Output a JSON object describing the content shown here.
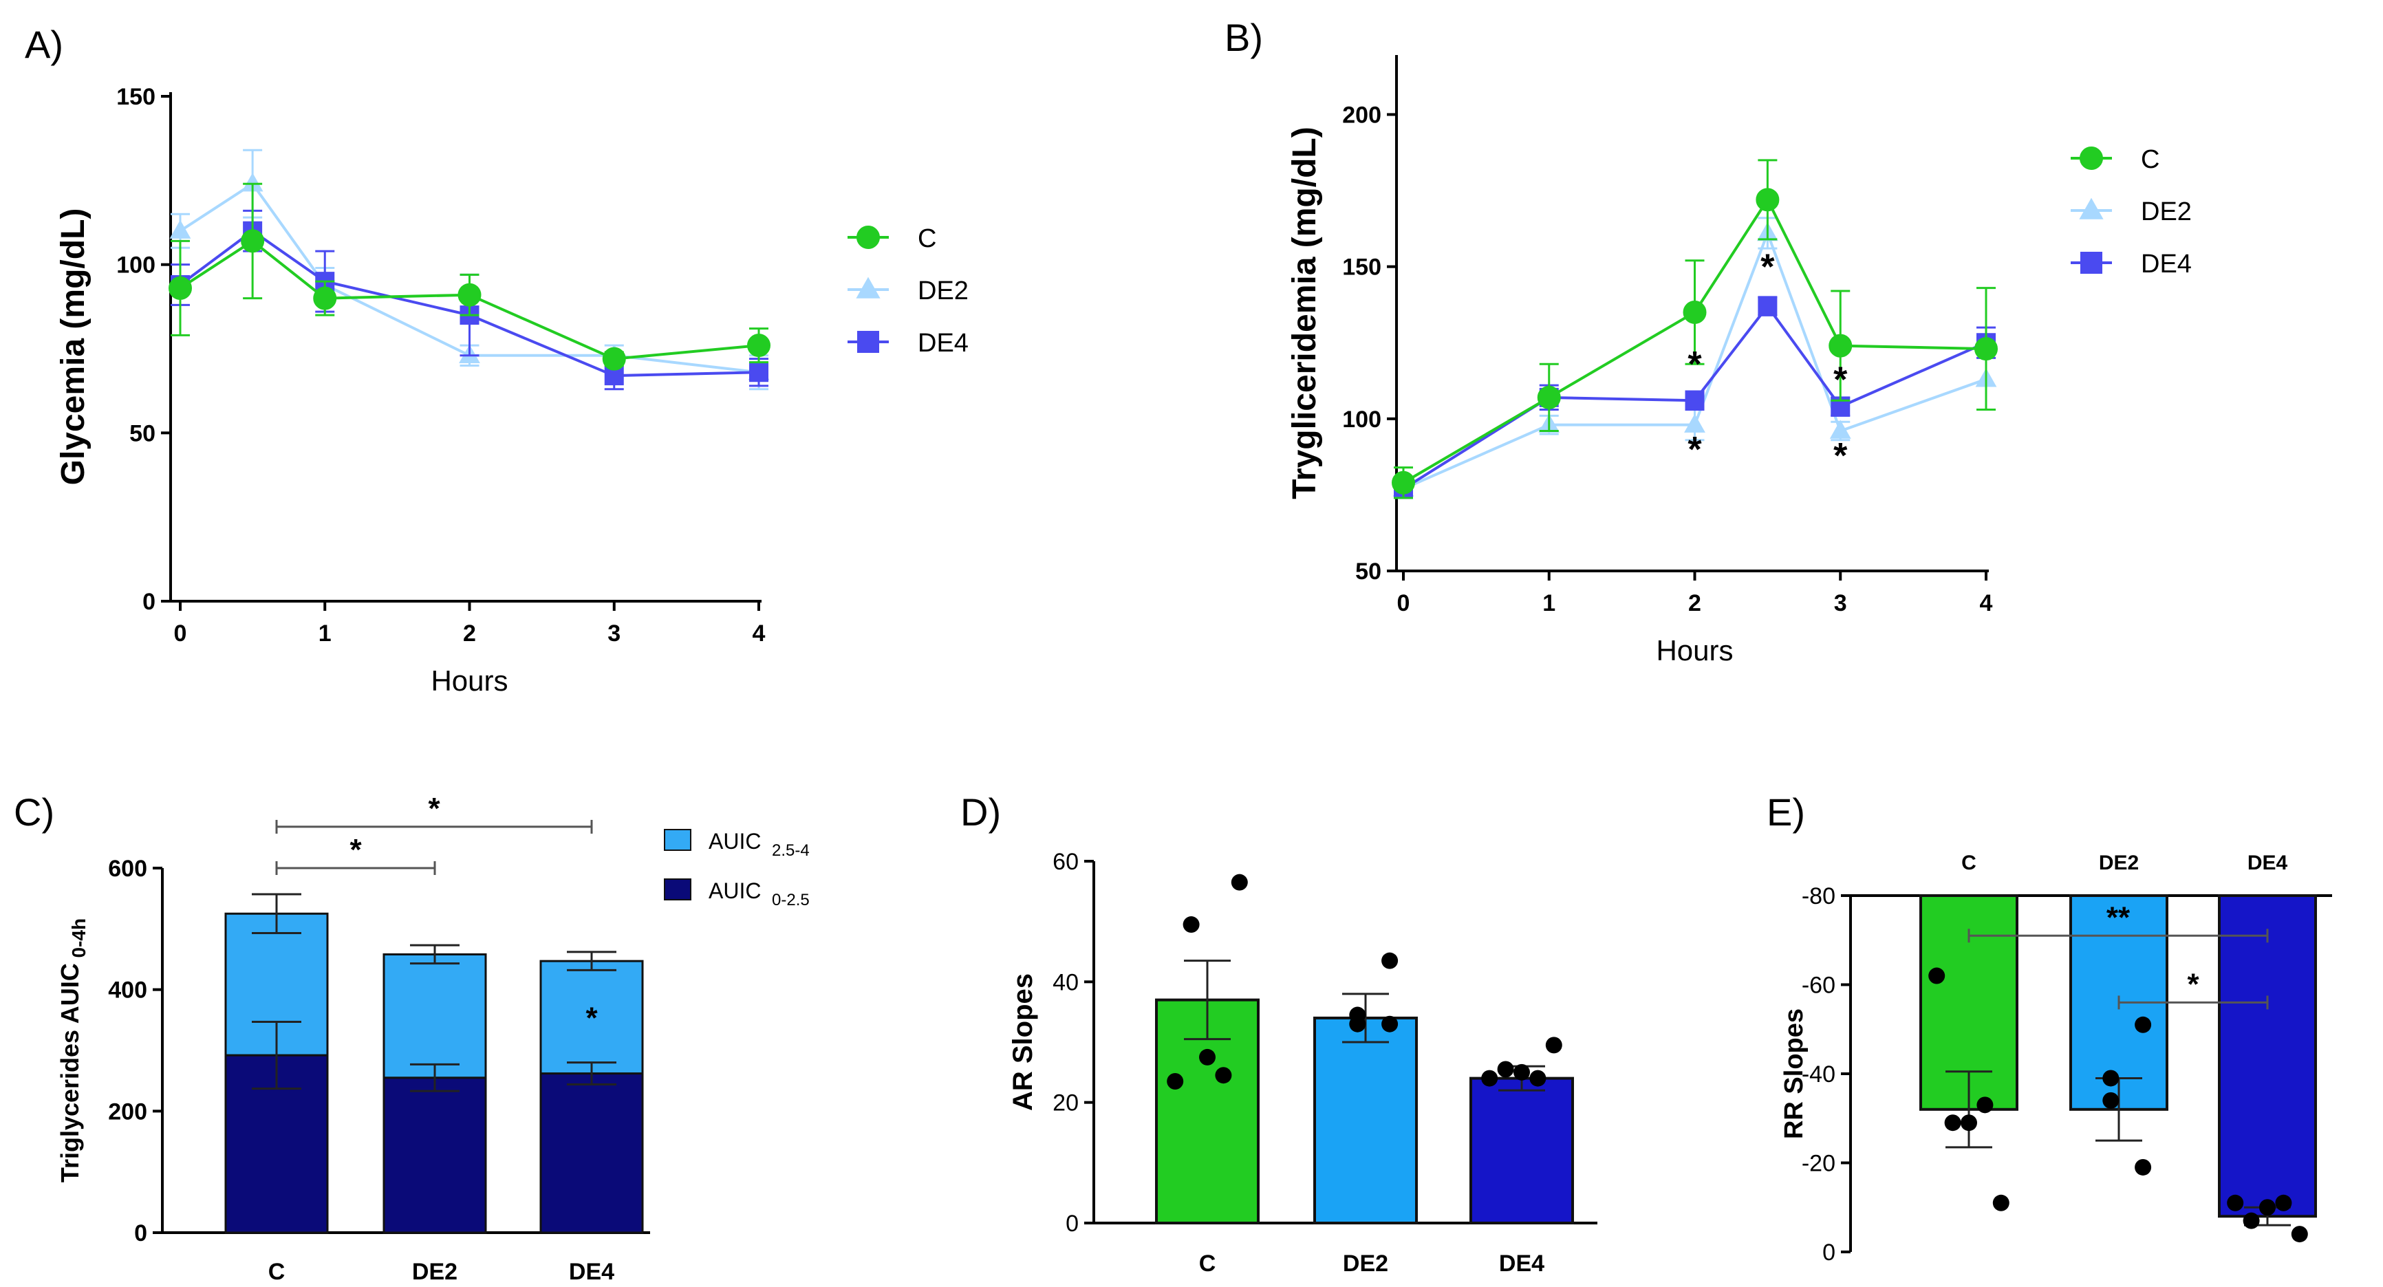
{
  "figure": {
    "colors": {
      "C": "#22cc22",
      "DE2": "#a8d8ff",
      "DE4": "#4a4af0",
      "AUIC_upper": "#33aaf5",
      "AUIC_lower": "#0a0a78",
      "bar_C": "#22cc22",
      "bar_DE2": "#1aa3f5",
      "bar_DE4": "#1515c8"
    }
  },
  "chart_data": [
    {
      "panel": "A)",
      "type": "line",
      "xlabel": "Hours",
      "ylabel": "Glycemia (mg/dL)",
      "xlim": [
        0,
        4
      ],
      "ylim": [
        0,
        150
      ],
      "xticks": [
        "0",
        "1",
        "2",
        "3",
        "4"
      ],
      "yticks": [
        "0",
        "50",
        "100",
        "150"
      ],
      "x": [
        0,
        0.5,
        1,
        2,
        3,
        4
      ],
      "series": [
        {
          "name": "C",
          "marker": "circle",
          "values": [
            93,
            107,
            90,
            91,
            72,
            76
          ],
          "errors": [
            14,
            17,
            5,
            6,
            2,
            5
          ]
        },
        {
          "name": "DE2",
          "marker": "triangle",
          "values": [
            110,
            124,
            94,
            73,
            73,
            68
          ],
          "errors": [
            5,
            10,
            5,
            3,
            3,
            5
          ]
        },
        {
          "name": "DE4",
          "marker": "square",
          "values": [
            94,
            110,
            95,
            85,
            67,
            68
          ],
          "errors": [
            6,
            6,
            9,
            12,
            4,
            4
          ]
        }
      ],
      "legend": [
        "C",
        "DE2",
        "DE4"
      ]
    },
    {
      "panel": "B)",
      "type": "line",
      "xlabel": "Hours",
      "ylabel": "Trygliceridemia (mg/dL)",
      "xlim": [
        0,
        4
      ],
      "ylim": [
        50,
        220
      ],
      "xticks": [
        "0",
        "1",
        "2",
        "3",
        "4"
      ],
      "yticks": [
        "50",
        "100",
        "150",
        "200"
      ],
      "x": [
        0,
        1,
        2,
        2.5,
        3,
        4
      ],
      "series": [
        {
          "name": "C",
          "marker": "circle",
          "values": [
            79,
            107,
            135,
            172,
            124,
            123
          ],
          "errors": [
            5,
            11,
            17,
            13,
            18,
            20
          ]
        },
        {
          "name": "DE2",
          "marker": "triangle",
          "values": [
            77,
            98,
            98,
            161,
            96,
            113
          ],
          "errors": [
            3,
            3,
            5,
            5,
            3,
            10
          ]
        },
        {
          "name": "DE4",
          "marker": "square",
          "values": [
            77,
            107,
            106,
            137,
            104,
            125
          ],
          "errors": [
            3,
            4,
            3,
            3,
            3,
            5
          ]
        }
      ],
      "annotations": [
        {
          "text": "*",
          "x": 2,
          "y": 118
        },
        {
          "text": "*",
          "x": 2,
          "y": 90
        },
        {
          "text": "*",
          "x": 2.5,
          "y": 150
        },
        {
          "text": "*",
          "x": 3,
          "y": 113
        },
        {
          "text": "*",
          "x": 3,
          "y": 88
        }
      ],
      "legend": [
        "C",
        "DE2",
        "DE4"
      ]
    },
    {
      "panel": "C)",
      "type": "bar",
      "stacked": true,
      "ylabel": "Triglycerides AUIC",
      "ylabel_sub": "0-4h",
      "ylim": [
        0,
        600
      ],
      "yticks": [
        "0",
        "200",
        "400",
        "600"
      ],
      "categories": [
        "C",
        "DE2",
        "DE4"
      ],
      "series": [
        {
          "name": "AUIC 0-2.5",
          "label": "AUIC",
          "sub": "0-2.5",
          "values": [
            292,
            255,
            262
          ],
          "errors": [
            55,
            22,
            18
          ]
        },
        {
          "name": "AUIC 2.5-4",
          "label": "AUIC",
          "sub": "2.5-4",
          "values": [
            233,
            203,
            185
          ],
          "errors": [
            32,
            15,
            15
          ]
        }
      ],
      "legend": [
        {
          "label": "AUIC",
          "sub": "2.5-4",
          "series": "AUIC 2.5-4"
        },
        {
          "label": "AUIC",
          "sub": "0-2.5",
          "series": "AUIC 0-2.5"
        }
      ],
      "brackets": [
        {
          "from": "C",
          "to": "DE2",
          "text": "*",
          "y": 600
        },
        {
          "from": "C",
          "to": "DE4",
          "text": "*",
          "y": 668
        }
      ],
      "annotations": [
        {
          "text": "*",
          "category": "DE4",
          "y": 355
        }
      ]
    },
    {
      "panel": "D)",
      "type": "bar",
      "ylabel": "AR Slopes",
      "ylim": [
        0,
        60
      ],
      "yticks": [
        "0",
        "20",
        "40",
        "60"
      ],
      "categories": [
        "C",
        "DE2",
        "DE4"
      ],
      "values": [
        37,
        34,
        24
      ],
      "errors": [
        6.5,
        4,
        2
      ],
      "points": [
        [
          56.5,
          49.5,
          27.5,
          24.5,
          23.5
        ],
        [
          43.5,
          34.5,
          33,
          33
        ],
        [
          29.5,
          25.5,
          25,
          24,
          24
        ]
      ]
    },
    {
      "panel": "E)",
      "type": "bar",
      "ylabel": "RR Slopes",
      "ylim": [
        -80,
        0
      ],
      "yticks": [
        "0",
        "-20",
        "-40",
        "-60",
        "-80"
      ],
      "categories": [
        "C",
        "DE2",
        "DE4"
      ],
      "values": [
        -32,
        -32,
        -8
      ],
      "errors": [
        8.5,
        7,
        2
      ],
      "points": [
        [
          -11,
          -29,
          -29,
          -33,
          -62
        ],
        [
          -19,
          -34,
          -39,
          -51
        ],
        [
          -4,
          -7,
          -10,
          -11,
          -11
        ]
      ],
      "brackets": [
        {
          "from": "DE2",
          "to": "DE4",
          "text": "*",
          "y": -56
        },
        {
          "from": "C",
          "to": "DE4",
          "text": "**",
          "y": -71
        }
      ]
    }
  ]
}
